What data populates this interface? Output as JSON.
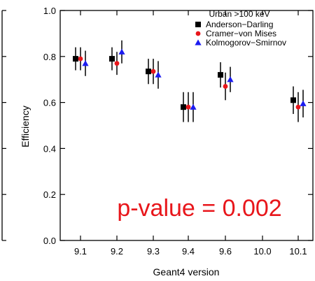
{
  "chart_data": {
    "type": "scatter",
    "title": "",
    "xlabel": "Geant4 version",
    "ylabel": "Efficiency",
    "categories": [
      "9.1",
      "9.2",
      "9.3",
      "9.4",
      "9.6",
      "10.0",
      "10.1"
    ],
    "ylim": [
      0.0,
      1.0
    ],
    "yticks": [
      "0.0",
      "0.2",
      "0.4",
      "0.6",
      "0.8",
      "1.0"
    ],
    "grid": false,
    "legend": {
      "title": "Urban >100 keV",
      "placement": "top-right"
    },
    "annotation": "p-value = 0.002",
    "series": [
      {
        "name": "Anderson−Darling",
        "marker": "square",
        "color": "#000000",
        "values": [
          0.79,
          0.79,
          0.735,
          0.58,
          0.72,
          null,
          0.61
        ],
        "err": [
          0.05,
          0.05,
          0.055,
          0.065,
          0.055,
          null,
          0.06
        ]
      },
      {
        "name": "Cramer−von Mises",
        "marker": "circle",
        "color": "#e8161b",
        "values": [
          0.79,
          0.77,
          0.735,
          0.58,
          0.67,
          null,
          0.58
        ],
        "err": [
          0.05,
          0.05,
          0.055,
          0.065,
          0.06,
          null,
          0.065
        ]
      },
      {
        "name": "Kolmogorov−Smirnov",
        "marker": "triangle",
        "color": "#1c1cf0",
        "values": [
          0.77,
          0.82,
          0.72,
          0.58,
          0.7,
          null,
          0.595
        ],
        "err": [
          0.055,
          0.05,
          0.06,
          0.065,
          0.055,
          null,
          0.06
        ]
      }
    ]
  }
}
